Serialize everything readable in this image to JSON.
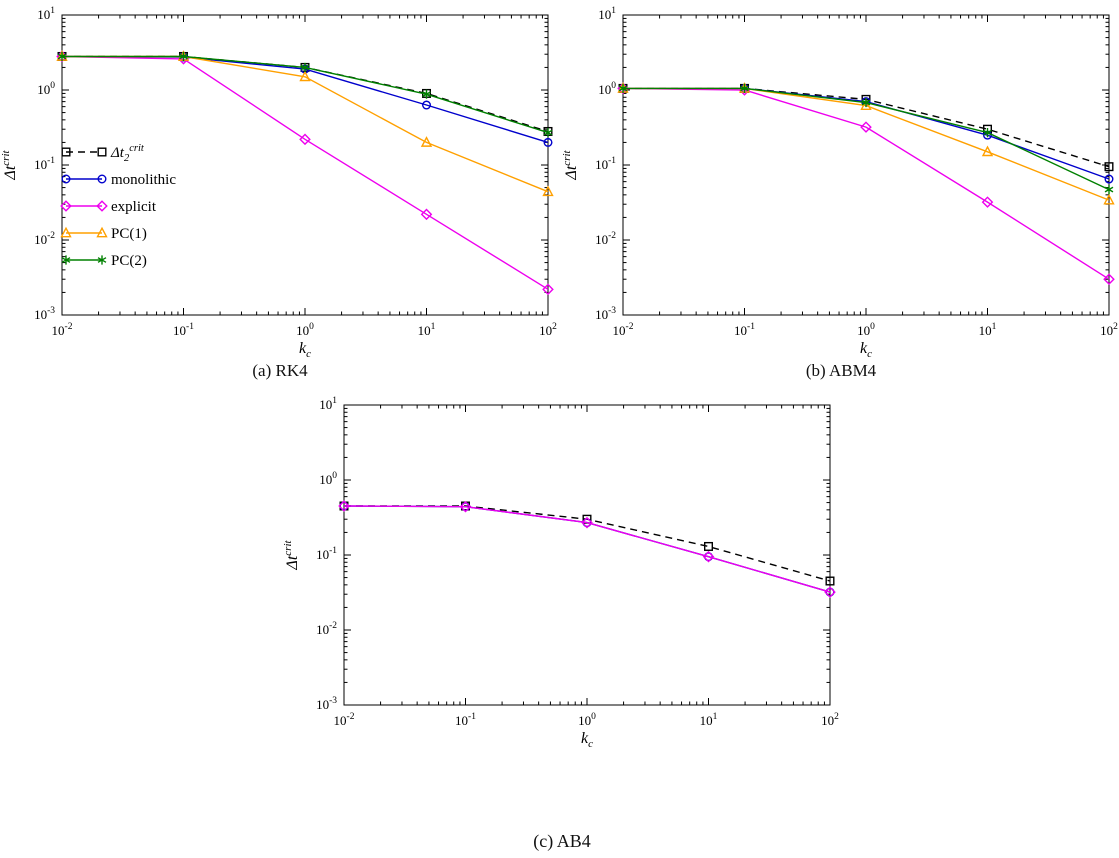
{
  "figure": {
    "background": "#ffffff",
    "captions": [
      "(a) RK4",
      "(b) ABM4",
      "(c) AB4"
    ]
  },
  "colors": {
    "axis": "#000000",
    "dt2crit": "#000000",
    "monolithic": "#0000cc",
    "explicit": "#ee00ee",
    "pc1": "#ffa000",
    "pc2": "#008000"
  },
  "chart_data": [
    {
      "id": "a",
      "type": "line",
      "caption": "(a) RK4",
      "xlabel": "k_c",
      "xlabel_parts": {
        "base": "k",
        "sub": "c"
      },
      "ylabel": "Δt^crit",
      "ylabel_parts": {
        "base": "Δt",
        "sup": "crit"
      },
      "xscale": "log",
      "yscale": "log",
      "xlim": [
        0.01,
        100
      ],
      "ylim": [
        0.001,
        10
      ],
      "legend": true,
      "legend_position": "left-middle",
      "x": [
        0.01,
        0.1,
        1,
        10,
        100
      ],
      "series": [
        {
          "key": "dt2crit",
          "name": "Δt2^crit",
          "label_parts": {
            "base": "Δt",
            "sub": "2",
            "sup": "crit"
          },
          "color": "#000000",
          "dash": true,
          "marker": "square",
          "values": [
            2.8,
            2.8,
            2.0,
            0.9,
            0.28
          ]
        },
        {
          "key": "monolithic",
          "name": "monolithic",
          "color": "#0000cc",
          "dash": false,
          "marker": "circle",
          "values": [
            2.8,
            2.75,
            1.9,
            0.63,
            0.2
          ]
        },
        {
          "key": "explicit",
          "name": "explicit",
          "color": "#ee00ee",
          "dash": false,
          "marker": "diamond",
          "values": [
            2.8,
            2.6,
            0.22,
            0.022,
            0.0022
          ]
        },
        {
          "key": "pc1",
          "name": "PC(1)",
          "color": "#ffa000",
          "dash": false,
          "marker": "triangle",
          "values": [
            2.8,
            2.8,
            1.5,
            0.2,
            0.044
          ]
        },
        {
          "key": "pc2",
          "name": "PC(2)",
          "color": "#008000",
          "dash": false,
          "marker": "star",
          "values": [
            2.8,
            2.8,
            2.0,
            0.88,
            0.27
          ]
        }
      ]
    },
    {
      "id": "b",
      "type": "line",
      "caption": "(b) ABM4",
      "xlabel": "k_c",
      "xlabel_parts": {
        "base": "k",
        "sub": "c"
      },
      "ylabel": "Δt^crit",
      "ylabel_parts": {
        "base": "Δt",
        "sup": "crit"
      },
      "xscale": "log",
      "yscale": "log",
      "xlim": [
        0.01,
        100
      ],
      "ylim": [
        0.001,
        10
      ],
      "legend": false,
      "x": [
        0.01,
        0.1,
        1,
        10,
        100
      ],
      "series": [
        {
          "key": "dt2crit",
          "name": "Δt2^crit",
          "label_parts": {
            "base": "Δt",
            "sub": "2",
            "sup": "crit"
          },
          "color": "#000000",
          "dash": true,
          "marker": "square",
          "values": [
            1.05,
            1.05,
            0.75,
            0.3,
            0.095
          ]
        },
        {
          "key": "monolithic",
          "name": "monolithic",
          "color": "#0000cc",
          "dash": false,
          "marker": "circle",
          "values": [
            1.05,
            1.05,
            0.7,
            0.25,
            0.065
          ]
        },
        {
          "key": "explicit",
          "name": "explicit",
          "color": "#ee00ee",
          "dash": false,
          "marker": "diamond",
          "values": [
            1.05,
            1.0,
            0.32,
            0.032,
            0.003
          ]
        },
        {
          "key": "pc1",
          "name": "PC(1)",
          "color": "#ffa000",
          "dash": false,
          "marker": "triangle",
          "values": [
            1.05,
            1.05,
            0.62,
            0.15,
            0.034
          ]
        },
        {
          "key": "pc2",
          "name": "PC(2)",
          "color": "#008000",
          "dash": false,
          "marker": "star",
          "values": [
            1.05,
            1.05,
            0.68,
            0.27,
            0.047
          ]
        }
      ]
    },
    {
      "id": "c",
      "type": "line",
      "caption": "(c) AB4",
      "xlabel": "k_c",
      "xlabel_parts": {
        "base": "k",
        "sub": "c"
      },
      "ylabel": "Δt^crit",
      "ylabel_parts": {
        "base": "Δt",
        "sup": "crit"
      },
      "xscale": "log",
      "yscale": "log",
      "xlim": [
        0.01,
        100
      ],
      "ylim": [
        0.001,
        10
      ],
      "legend": false,
      "x": [
        0.01,
        0.1,
        1,
        10,
        100
      ],
      "series": [
        {
          "key": "dt2crit",
          "name": "Δt2^crit",
          "label_parts": {
            "base": "Δt",
            "sub": "2",
            "sup": "crit"
          },
          "color": "#000000",
          "dash": true,
          "marker": "square",
          "values": [
            0.45,
            0.45,
            0.3,
            0.13,
            0.045
          ]
        },
        {
          "key": "monolithic",
          "name": "monolithic",
          "color": "#0000cc",
          "dash": false,
          "marker": "circle",
          "values": [
            0.45,
            0.44,
            0.27,
            0.095,
            0.032
          ]
        },
        {
          "key": "explicit",
          "name": "explicit",
          "color": "#ee00ee",
          "dash": false,
          "marker": "diamond",
          "values": [
            0.45,
            0.44,
            0.27,
            0.095,
            0.032
          ]
        }
      ]
    }
  ]
}
